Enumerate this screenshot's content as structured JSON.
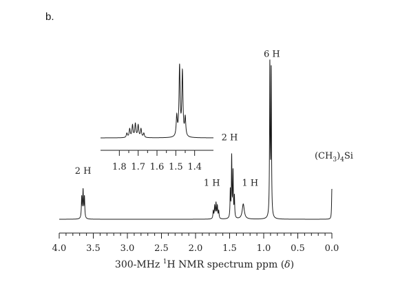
{
  "panel_label": "b.",
  "colors": {
    "ink": "#1a1a1a",
    "background": "#ffffff"
  },
  "chart_data": {
    "type": "line",
    "title": "",
    "xlabel_parts": {
      "prefix": "300-MHz ",
      "sup": "1",
      "suffix": "H NMR spectrum ppm (",
      "delta": "δ",
      "close": ")"
    },
    "xlim": [
      4.0,
      0.0
    ],
    "x_reversed": true,
    "grid": false,
    "x_ticks_major": [
      4.0,
      3.5,
      3.0,
      2.5,
      2.0,
      1.5,
      1.0,
      0.5,
      0.0
    ],
    "x_tick_labels": [
      "4.0",
      "3.5",
      "3.0",
      "2.5",
      "2.0",
      "1.5",
      "1.0",
      "0.5",
      "0.0"
    ],
    "x_ticks_minor_step": 0.1,
    "peaks": [
      {
        "center": 3.65,
        "lines": [
          3.67,
          3.65,
          3.63
        ],
        "heights": [
          0.14,
          0.18,
          0.14
        ],
        "width": 0.006
      },
      {
        "center": 1.7,
        "lines": [
          1.74,
          1.72,
          1.7,
          1.68,
          1.66
        ],
        "heights": [
          0.05,
          0.08,
          0.1,
          0.08,
          0.05
        ],
        "width": 0.006
      },
      {
        "center": 1.47,
        "lines": [
          1.49,
          1.47,
          1.45,
          1.43
        ],
        "heights": [
          0.18,
          0.4,
          0.3,
          0.14
        ],
        "width": 0.005
      },
      {
        "center": 1.3,
        "lines": [
          1.3
        ],
        "heights": [
          0.1
        ],
        "width": 0.018
      },
      {
        "center": 0.9,
        "lines": [
          0.91,
          0.89
        ],
        "heights": [
          1.0,
          0.96
        ],
        "width": 0.005
      },
      {
        "center": 0.0,
        "lines": [
          0.0
        ],
        "heights": [
          0.2
        ],
        "width": 0.005
      }
    ],
    "annotations": [
      {
        "text": "2 H",
        "x": 3.65,
        "y": 0.3
      },
      {
        "text": "1 H",
        "x": 1.76,
        "y": 0.22
      },
      {
        "text": "1 H",
        "x": 1.2,
        "y": 0.22
      },
      {
        "text": "2 H",
        "x": 1.5,
        "y": 0.52
      },
      {
        "text": "6 H",
        "x": 0.88,
        "y": 1.07
      },
      {
        "text": "(CH3)4Si",
        "x": -0.03,
        "y": 0.4
      }
    ],
    "inset": {
      "xlim": [
        1.9,
        1.3
      ],
      "x_ticks_major": [
        1.8,
        1.7,
        1.6,
        1.5,
        1.4
      ],
      "x_tick_labels": [
        "1.8",
        "1.7",
        "1.6",
        "1.5",
        "1.4"
      ],
      "x_ticks_minor_step": 0.05,
      "peaks": [
        {
          "lines": [
            1.76,
            1.745,
            1.73,
            1.715,
            1.7,
            1.685,
            1.67
          ],
          "heights": [
            0.06,
            0.12,
            0.17,
            0.19,
            0.17,
            0.12,
            0.06
          ],
          "width": 0.0035
        },
        {
          "lines": [
            1.495,
            1.48,
            1.465,
            1.45
          ],
          "heights": [
            0.28,
            0.98,
            0.9,
            0.26
          ],
          "width": 0.0035
        }
      ]
    }
  }
}
